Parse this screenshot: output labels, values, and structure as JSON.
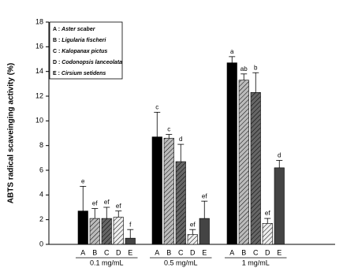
{
  "chart_data": {
    "type": "bar",
    "y_label": "ABTS radical  scaveinging activity (%)",
    "categories": [
      "0.1 mg/mL",
      "0.5 mg/mL",
      "1 mg/mL"
    ],
    "series": [
      {
        "key": "A",
        "name": "Aster scaber",
        "color": "#000000",
        "hatch": false,
        "values": [
          2.7,
          8.7,
          14.7
        ],
        "errors": [
          2.0,
          2.0,
          0.5
        ],
        "letters": [
          "e",
          "c",
          "a"
        ]
      },
      {
        "key": "B",
        "name": "Ligularia fischeri",
        "color": "#bbbbbb",
        "hatch": true,
        "values": [
          2.1,
          8.6,
          13.3
        ],
        "errors": [
          0.8,
          0.3,
          0.5
        ],
        "letters": [
          "ef",
          "c",
          "ab"
        ]
      },
      {
        "key": "C",
        "name": "Kalopanax pictus",
        "color": "#666666",
        "hatch": true,
        "values": [
          2.1,
          6.7,
          12.3
        ],
        "errors": [
          0.9,
          1.4,
          1.6
        ],
        "letters": [
          "ef",
          "d",
          "b"
        ]
      },
      {
        "key": "D",
        "name": "Codonopsis lanceolata",
        "color": "#eeeeee",
        "hatch": true,
        "values": [
          2.2,
          0.8,
          1.7
        ],
        "errors": [
          0.5,
          0.4,
          0.4
        ],
        "letters": [
          "ef",
          "ef",
          "ef"
        ]
      },
      {
        "key": "E",
        "name": "Cirsium setidens",
        "color": "#444444",
        "hatch": false,
        "values": [
          0.5,
          2.1,
          6.2
        ],
        "errors": [
          0.7,
          1.4,
          0.6
        ],
        "letters": [
          "f",
          "ef",
          "d"
        ]
      }
    ],
    "ylim": [
      0,
      18
    ],
    "yticks": [
      0,
      2,
      4,
      6,
      8,
      10,
      12,
      14,
      16,
      18
    ]
  }
}
